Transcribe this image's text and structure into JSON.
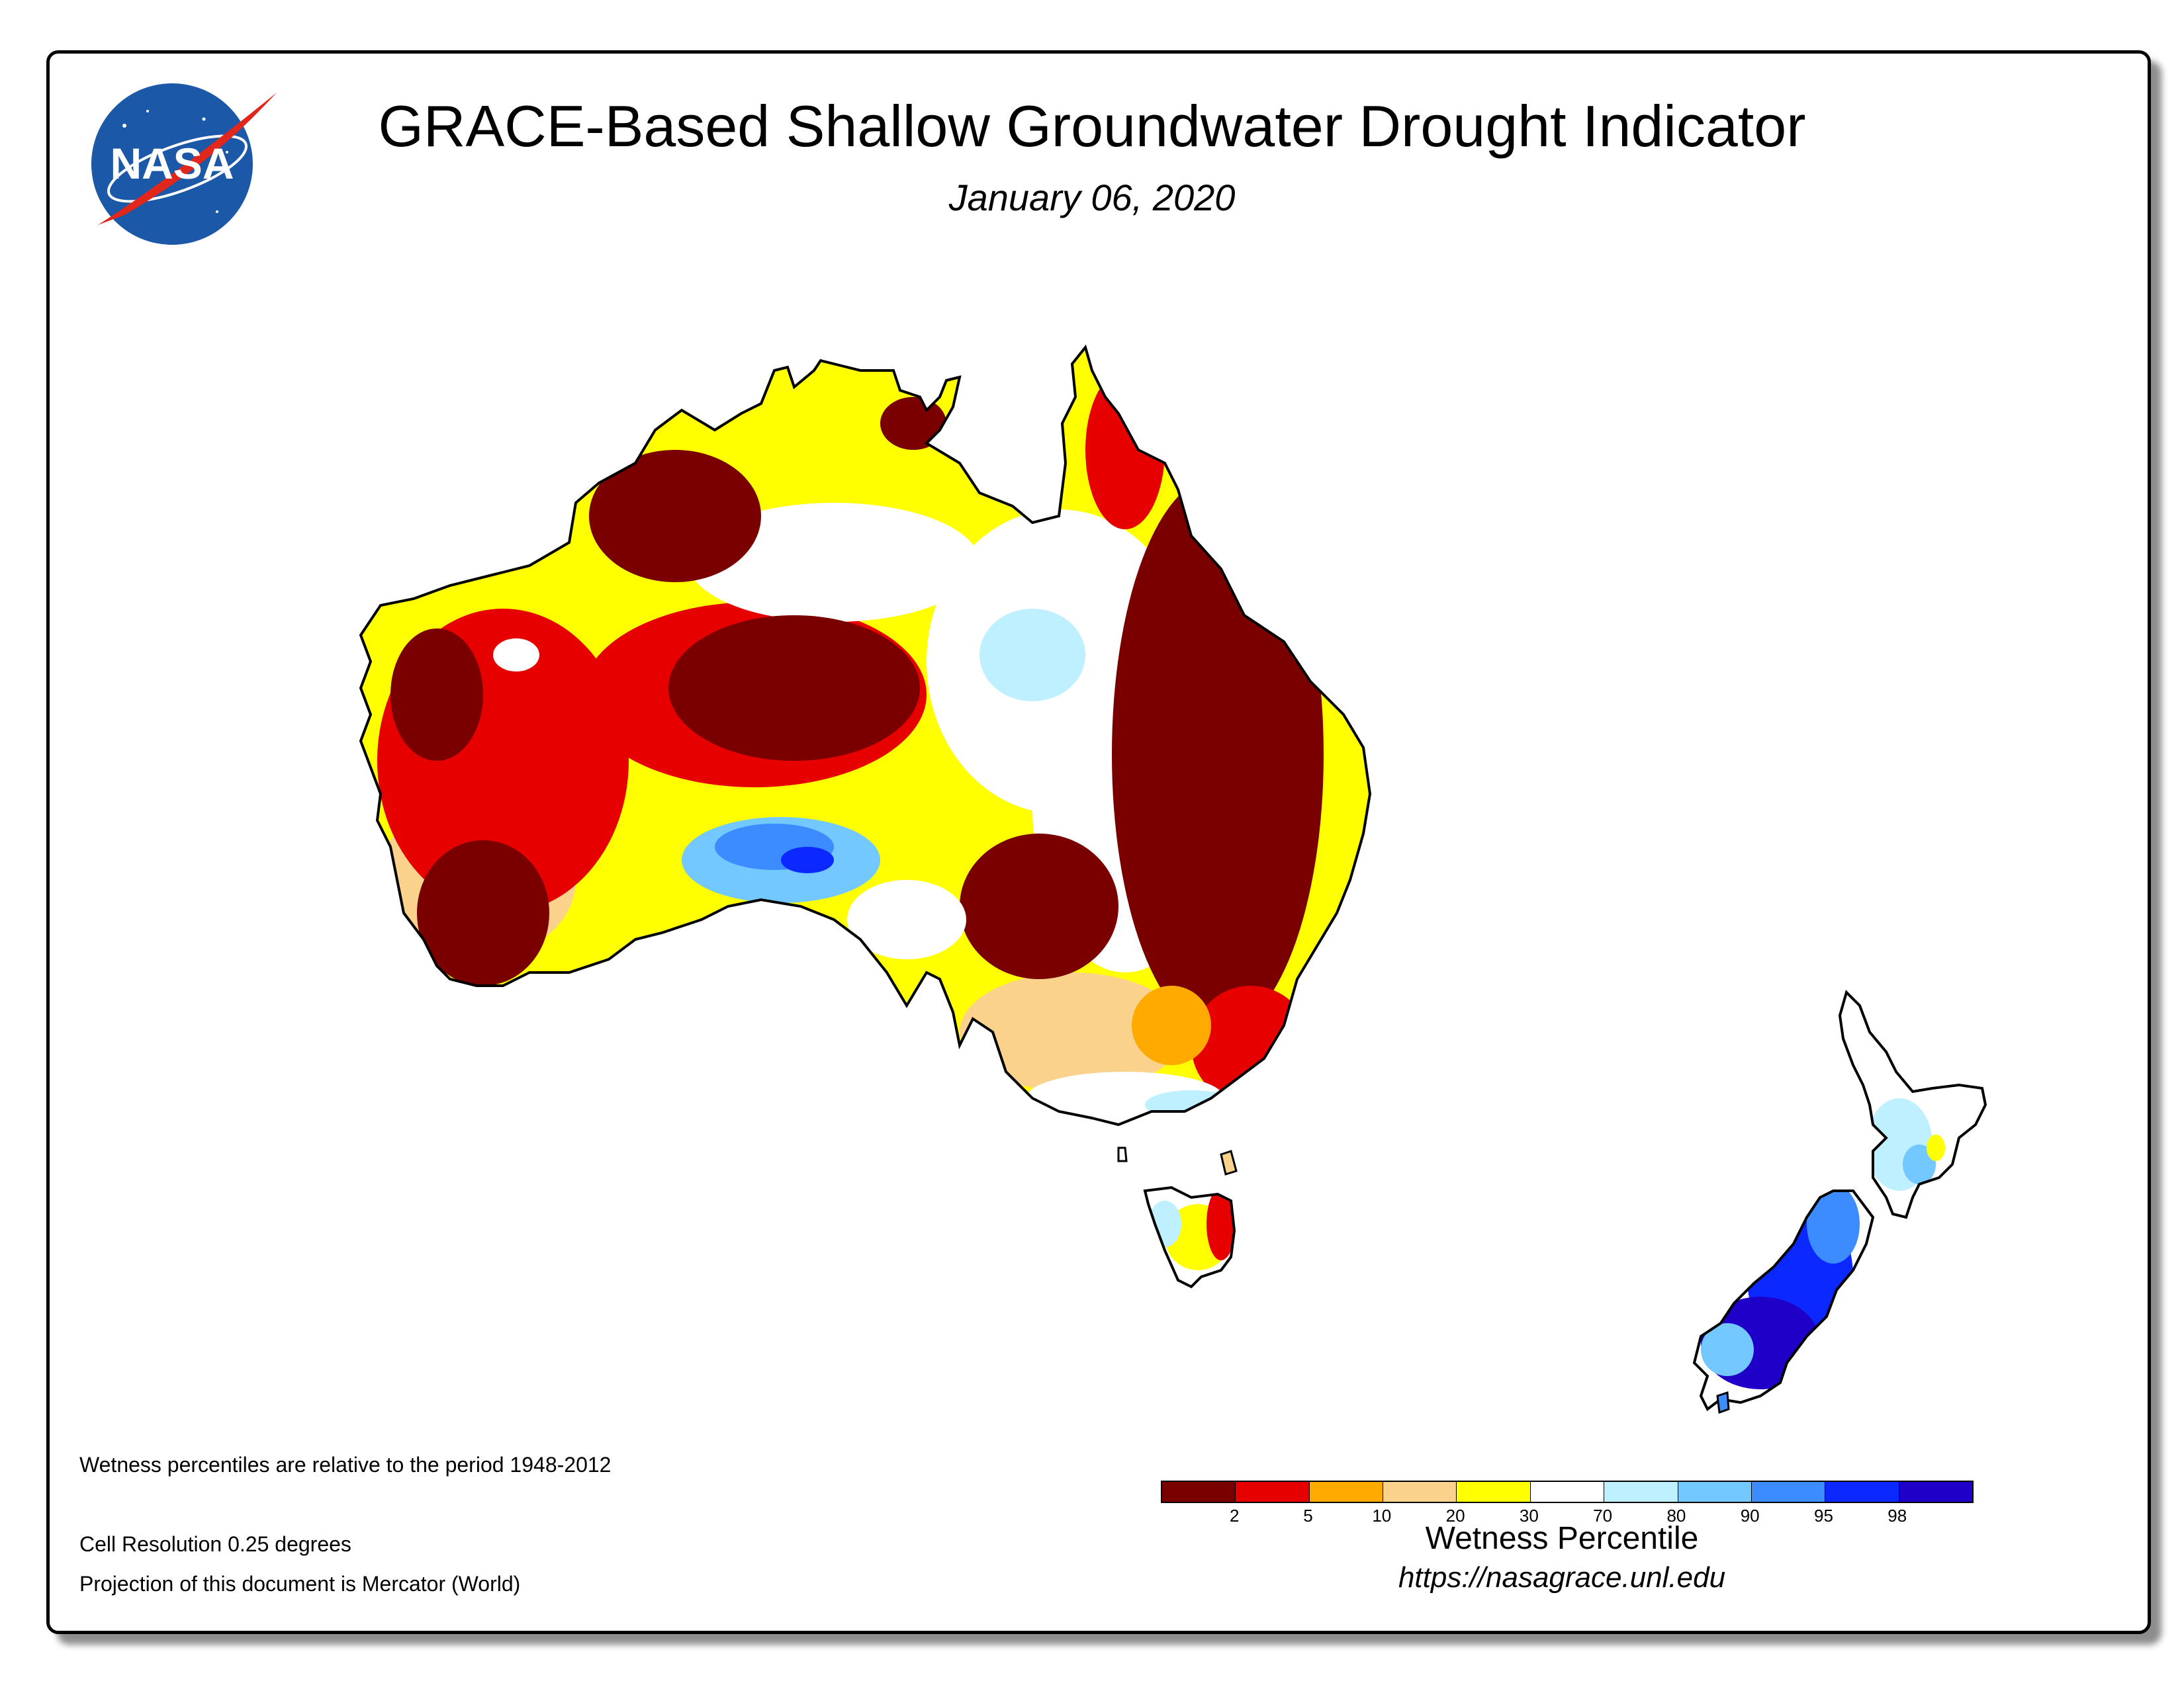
{
  "header": {
    "title": "GRACE-Based Shallow Groundwater Drought Indicator",
    "date": "January 06, 2020",
    "logo_text": "NASA"
  },
  "notes": {
    "period": "Wetness percentiles are relative to the period 1948-2012",
    "resolution": "Cell Resolution 0.25 degrees",
    "projection": "Projection of this document is Mercator (World)"
  },
  "legend": {
    "title": "Wetness Percentile",
    "url": "https://nasagrace.unl.edu",
    "colors": [
      "#7a0000",
      "#e60000",
      "#ffaa00",
      "#fad28c",
      "#ffff00",
      "#ffffff",
      "#bef0ff",
      "#73c8ff",
      "#3c8cff",
      "#0a28ff",
      "#1e00c8"
    ],
    "ticks": [
      "2",
      "5",
      "10",
      "20",
      "30",
      "70",
      "80",
      "90",
      "95",
      "98"
    ]
  },
  "map": {
    "regions": [
      "Australia",
      "Tasmania",
      "New Zealand North Island",
      "New Zealand South Island"
    ],
    "colors": {
      "extreme_dry": "#7a0000",
      "severe_dry": "#e60000",
      "moderate_dry": "#ffaa00",
      "abnormal_dry": "#fad28c",
      "slight_dry": "#ffff00",
      "normal": "#ffffff",
      "slight_wet": "#bef0ff",
      "wet": "#73c8ff",
      "very_wet": "#3c8cff",
      "extreme_wet": "#0a28ff",
      "exceptional_wet": "#1e00c8"
    }
  }
}
